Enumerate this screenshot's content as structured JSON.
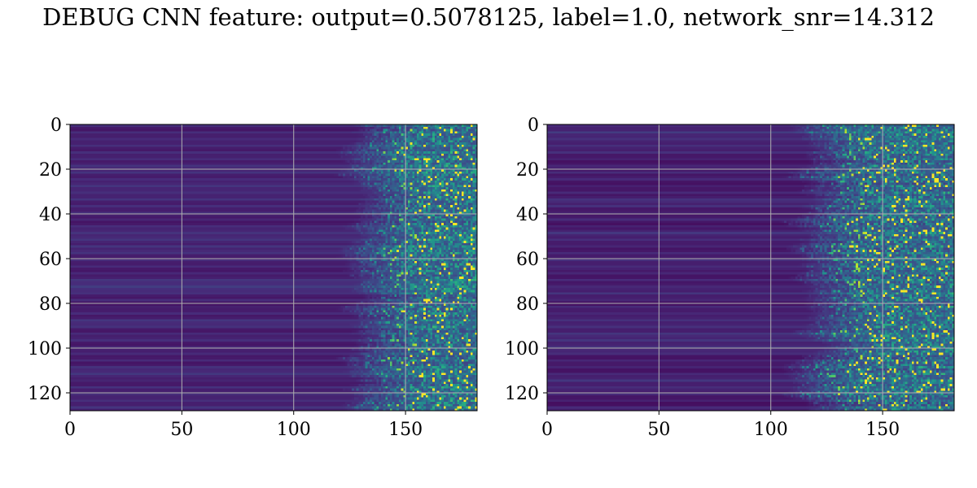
{
  "figure": {
    "title": "DEBUG CNN feature: output=0.5078125, label=1.0, network_snr=14.312"
  },
  "chart_data": [
    {
      "type": "heatmap",
      "colormap": "viridis",
      "grid": true,
      "rows": 128,
      "cols": 182,
      "xlim": [
        0,
        182
      ],
      "ylim": [
        0,
        128
      ],
      "y_inverted": true,
      "xticks": [
        0,
        50,
        100,
        150
      ],
      "yticks": [
        0,
        20,
        40,
        60,
        80,
        100,
        120
      ],
      "xticklabels": [
        "0",
        "50",
        "100",
        "150"
      ],
      "yticklabels": [
        "0",
        "20",
        "40",
        "60",
        "80",
        "100",
        "120"
      ],
      "activity_onset_col": 125,
      "title": "",
      "xlabel": "",
      "ylabel": ""
    },
    {
      "type": "heatmap",
      "colormap": "viridis",
      "grid": true,
      "rows": 128,
      "cols": 182,
      "xlim": [
        0,
        182
      ],
      "ylim": [
        0,
        128
      ],
      "y_inverted": true,
      "xticks": [
        0,
        50,
        100,
        150
      ],
      "yticks": [
        0,
        20,
        40,
        60,
        80,
        100,
        120
      ],
      "xticklabels": [
        "0",
        "50",
        "100",
        "150"
      ],
      "yticklabels": [
        "0",
        "20",
        "40",
        "60",
        "80",
        "100",
        "120"
      ],
      "activity_onset_col": 112,
      "title": "",
      "xlabel": "",
      "ylabel": ""
    }
  ]
}
